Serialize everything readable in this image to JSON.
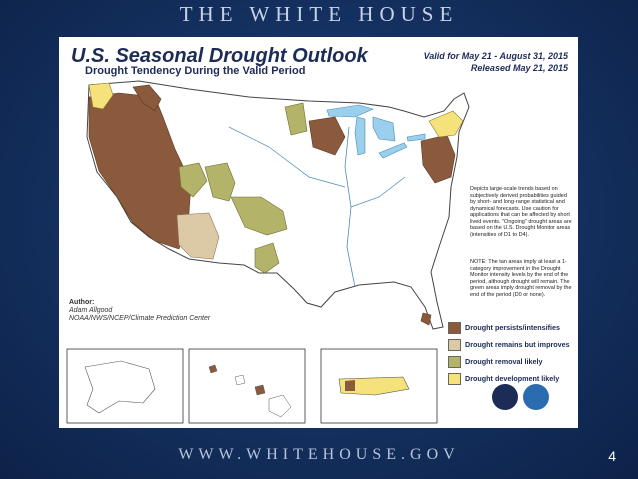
{
  "slide_header": "THE WHITE HOUSE",
  "slide_footer": "WWW.WHITEHOUSE.GOV",
  "page_number": "4",
  "map": {
    "title": "U.S. Seasonal Drought Outlook",
    "subtitle": "Drought Tendency During the Valid Period",
    "valid_line": "Valid for May 21 - August 31, 2015",
    "released_line": "Released May 21, 2015",
    "description": "Depicts large-scale trends based on subjectively derived probabilities guided by short- and long-range statistical and dynamical forecasts. Use caution for applications that can be affected by short lived events. \"Ongoing\" drought areas are based on the U.S. Drought Monitor areas (intensities of D1 to D4).",
    "note": "NOTE: The tan areas imply at least a 1-category improvement in the Drought Monitor intensity levels by the end of the period, although drought will remain. The green areas imply drought removal by the end of the period (D0 or none).",
    "author_heading": "Author:",
    "author_name": "Adam Allgood",
    "author_org": "NOAA/NWS/NCEP/Climate Prediction Center",
    "legend": [
      {
        "label": "Drought persists/intensifies",
        "color": "#8b5a3c"
      },
      {
        "label": "Drought remains but improves",
        "color": "#dcc9a6"
      },
      {
        "label": "Drought removal likely",
        "color": "#b3b36a"
      },
      {
        "label": "Drought development likely",
        "color": "#f6e27a"
      }
    ],
    "colors": {
      "persist": "#8b5a3c",
      "improve": "#dcc9a6",
      "removal": "#b3b36a",
      "development": "#f6e27a",
      "water": "#9ad0ee",
      "land": "#ffffff",
      "title_ink": "#1d2b57"
    },
    "insets": [
      "Alaska",
      "Hawaii",
      "Puerto Rico"
    ]
  }
}
